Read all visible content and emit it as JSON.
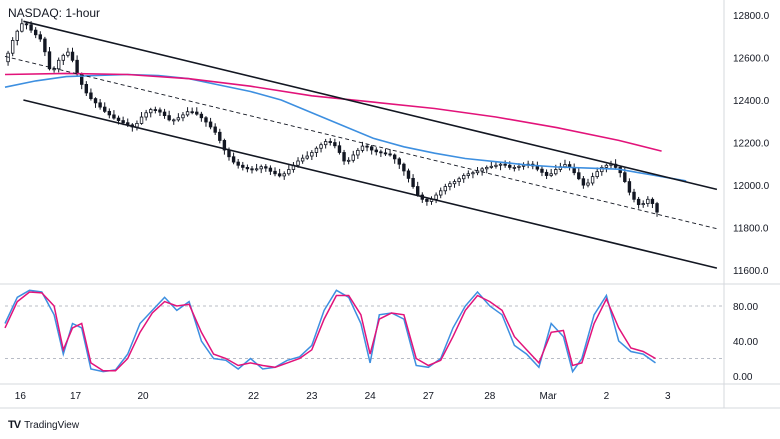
{
  "header": {
    "title": "NASDAQ: 1-hour"
  },
  "footer": {
    "brand_name": "TradingView",
    "brand_mark": "TV"
  },
  "colors": {
    "candle": "#131722",
    "ma_fast": "#3d8fe0",
    "ma_slow": "#e2137a",
    "stoch_k": "#3d8fe0",
    "stoch_d": "#e2137a",
    "channel": "#131722",
    "grid": "#b8bcc6"
  },
  "chart_data": [
    {
      "type": "candlestick",
      "title": "NASDAQ: 1-hour",
      "x_ticks": [
        "16",
        "17",
        "20",
        "22",
        "23",
        "24",
        "27",
        "28",
        "Mar",
        "2",
        "3"
      ],
      "y_ticks": [
        "12800.0",
        "12600.0",
        "12400.0",
        "12200.0",
        "12000.0",
        "11800.0",
        "11600.0"
      ],
      "ylim": [
        11540,
        12870
      ],
      "close_path": [
        [
          0,
          12580
        ],
        [
          1.5,
          12700
        ],
        [
          3,
          12770
        ],
        [
          4.5,
          12720
        ],
        [
          6,
          12680
        ],
        [
          7.5,
          12520
        ],
        [
          9,
          12600
        ],
        [
          10.5,
          12630
        ],
        [
          12,
          12500
        ],
        [
          13.5,
          12420
        ],
        [
          15,
          12380
        ],
        [
          16.5,
          12340
        ],
        [
          18,
          12310
        ],
        [
          19.5,
          12290
        ],
        [
          21,
          12270
        ],
        [
          22.5,
          12330
        ],
        [
          24,
          12360
        ],
        [
          25.5,
          12340
        ],
        [
          27,
          12300
        ],
        [
          28.5,
          12320
        ],
        [
          30,
          12350
        ],
        [
          31.5,
          12330
        ],
        [
          33,
          12290
        ],
        [
          34.5,
          12240
        ],
        [
          36,
          12150
        ],
        [
          37.5,
          12100
        ],
        [
          39,
          12080
        ],
        [
          40.5,
          12070
        ],
        [
          42,
          12090
        ],
        [
          43.5,
          12060
        ],
        [
          45,
          12040
        ],
        [
          46.5,
          12080
        ],
        [
          48,
          12120
        ],
        [
          49.5,
          12140
        ],
        [
          51,
          12180
        ],
        [
          52.5,
          12210
        ],
        [
          54,
          12180
        ],
        [
          55.5,
          12100
        ],
        [
          57,
          12150
        ],
        [
          58.5,
          12190
        ],
        [
          60,
          12160
        ],
        [
          61.5,
          12150
        ],
        [
          63,
          12140
        ],
        [
          64.5,
          12090
        ],
        [
          66,
          12020
        ],
        [
          67.5,
          11940
        ],
        [
          69,
          11920
        ],
        [
          70.5,
          11960
        ],
        [
          72,
          12000
        ],
        [
          73.5,
          12020
        ],
        [
          75,
          12050
        ],
        [
          76.5,
          12060
        ],
        [
          78,
          12080
        ],
        [
          79.5,
          12090
        ],
        [
          81,
          12100
        ],
        [
          82.5,
          12080
        ],
        [
          84,
          12090
        ],
        [
          85.5,
          12100
        ],
        [
          87,
          12070
        ],
        [
          88.5,
          12040
        ],
        [
          90,
          12080
        ],
        [
          91.5,
          12100
        ],
        [
          93,
          12050
        ],
        [
          94.5,
          11990
        ],
        [
          96,
          12050
        ],
        [
          97.5,
          12090
        ],
        [
          99,
          12100
        ],
        [
          100.5,
          12050
        ],
        [
          102,
          11950
        ],
        [
          103.5,
          11900
        ],
        [
          105,
          11940
        ],
        [
          106.5,
          11860
        ]
      ],
      "series": [
        {
          "name": "",
          "role": "ma_fast",
          "points": [
            [
              0,
              12460
            ],
            [
              5,
              12490
            ],
            [
              10,
              12510
            ],
            [
              15,
              12515
            ],
            [
              20,
              12520
            ],
            [
              25,
              12515
            ],
            [
              30,
              12500
            ],
            [
              35,
              12470
            ],
            [
              40,
              12440
            ],
            [
              45,
              12400
            ],
            [
              50,
              12340
            ],
            [
              55,
              12280
            ],
            [
              60,
              12220
            ],
            [
              65,
              12180
            ],
            [
              70,
              12150
            ],
            [
              75,
              12125
            ],
            [
              80,
              12110
            ],
            [
              85,
              12095
            ],
            [
              90,
              12085
            ],
            [
              95,
              12080
            ],
            [
              100,
              12075
            ],
            [
              105,
              12050
            ],
            [
              111,
              12020
            ]
          ]
        },
        {
          "name": "",
          "role": "ma_slow",
          "points": [
            [
              0,
              12520
            ],
            [
              10,
              12525
            ],
            [
              20,
              12520
            ],
            [
              30,
              12500
            ],
            [
              40,
              12465
            ],
            [
              50,
              12420
            ],
            [
              60,
              12390
            ],
            [
              70,
              12360
            ],
            [
              80,
              12320
            ],
            [
              90,
              12270
            ],
            [
              100,
              12210
            ],
            [
              107,
              12160
            ]
          ]
        },
        {
          "name": "",
          "role": "channel_upper",
          "style": "solid",
          "points": [
            [
              3,
              12770
            ],
            [
              116,
              11980
            ]
          ]
        },
        {
          "name": "",
          "role": "channel_lower",
          "style": "solid",
          "points": [
            [
              3,
              12400
            ],
            [
              116,
              11610
            ]
          ]
        },
        {
          "name": "",
          "role": "channel_mid",
          "style": "dashed",
          "points": [
            [
              0,
              12605
            ],
            [
              116,
              11795
            ]
          ]
        }
      ],
      "grid": false
    },
    {
      "type": "line",
      "title": "",
      "y_ticks": [
        "80.00",
        "40.00",
        "0.00"
      ],
      "ylim": [
        -8,
        104
      ],
      "reference_lines": [
        80,
        20
      ],
      "series": [
        {
          "name": "",
          "role": "stoch_k",
          "points": [
            [
              0,
              60
            ],
            [
              2,
              90
            ],
            [
              4,
              98
            ],
            [
              6,
              96
            ],
            [
              8,
              70
            ],
            [
              9.5,
              25
            ],
            [
              11,
              60
            ],
            [
              12.5,
              55
            ],
            [
              14,
              8
            ],
            [
              16,
              5
            ],
            [
              18,
              7
            ],
            [
              20,
              25
            ],
            [
              22,
              60
            ],
            [
              24,
              75
            ],
            [
              26,
              90
            ],
            [
              28,
              75
            ],
            [
              30,
              85
            ],
            [
              32,
              40
            ],
            [
              34,
              20
            ],
            [
              36,
              18
            ],
            [
              38,
              8
            ],
            [
              40,
              20
            ],
            [
              42,
              8
            ],
            [
              44,
              10
            ],
            [
              46,
              18
            ],
            [
              48,
              22
            ],
            [
              50,
              35
            ],
            [
              52,
              75
            ],
            [
              54,
              98
            ],
            [
              56,
              90
            ],
            [
              58,
              60
            ],
            [
              59.5,
              15
            ],
            [
              61,
              70
            ],
            [
              63,
              72
            ],
            [
              65,
              65
            ],
            [
              67,
              12
            ],
            [
              69,
              10
            ],
            [
              71,
              20
            ],
            [
              73,
              55
            ],
            [
              75,
              80
            ],
            [
              77,
              96
            ],
            [
              79,
              80
            ],
            [
              81,
              70
            ],
            [
              83,
              35
            ],
            [
              85,
              25
            ],
            [
              87,
              10
            ],
            [
              89,
              60
            ],
            [
              91,
              45
            ],
            [
              92.5,
              5
            ],
            [
              94,
              20
            ],
            [
              96,
              70
            ],
            [
              98,
              92
            ],
            [
              100,
              40
            ],
            [
              102,
              28
            ],
            [
              104,
              25
            ],
            [
              106,
              15
            ]
          ]
        },
        {
          "name": "",
          "role": "stoch_d",
          "points": [
            [
              0,
              55
            ],
            [
              2,
              85
            ],
            [
              4,
              96
            ],
            [
              6,
              95
            ],
            [
              8,
              80
            ],
            [
              9.5,
              30
            ],
            [
              11,
              55
            ],
            [
              12.5,
              60
            ],
            [
              14,
              15
            ],
            [
              16,
              6
            ],
            [
              18,
              6
            ],
            [
              20,
              20
            ],
            [
              22,
              50
            ],
            [
              24,
              72
            ],
            [
              26,
              85
            ],
            [
              28,
              80
            ],
            [
              30,
              82
            ],
            [
              32,
              50
            ],
            [
              34,
              25
            ],
            [
              36,
              20
            ],
            [
              38,
              12
            ],
            [
              40,
              15
            ],
            [
              42,
              12
            ],
            [
              44,
              10
            ],
            [
              46,
              15
            ],
            [
              48,
              20
            ],
            [
              50,
              30
            ],
            [
              52,
              65
            ],
            [
              54,
              92
            ],
            [
              56,
              92
            ],
            [
              58,
              70
            ],
            [
              59.5,
              25
            ],
            [
              61,
              65
            ],
            [
              63,
              72
            ],
            [
              65,
              70
            ],
            [
              67,
              20
            ],
            [
              69,
              12
            ],
            [
              71,
              18
            ],
            [
              73,
              45
            ],
            [
              75,
              75
            ],
            [
              77,
              92
            ],
            [
              79,
              85
            ],
            [
              81,
              75
            ],
            [
              83,
              45
            ],
            [
              85,
              30
            ],
            [
              87,
              15
            ],
            [
              89,
              50
            ],
            [
              91,
              52
            ],
            [
              92.5,
              12
            ],
            [
              94,
              15
            ],
            [
              96,
              60
            ],
            [
              98,
              88
            ],
            [
              100,
              55
            ],
            [
              102,
              32
            ],
            [
              104,
              28
            ],
            [
              106,
              20
            ]
          ]
        }
      ],
      "grid": false
    }
  ]
}
